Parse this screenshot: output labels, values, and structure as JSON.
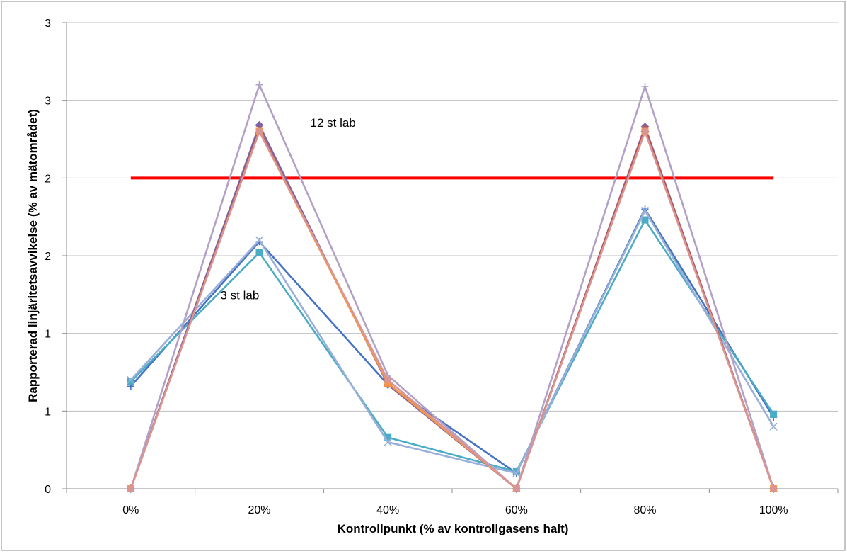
{
  "chart_data": {
    "type": "line",
    "title": "",
    "xlabel": "Kontrollpunkt (% av kontrollgasens halt)",
    "ylabel": "Rapporterad linjäritetsavvikelse (% av mätområdet)",
    "categories": [
      "0%",
      "20%",
      "40%",
      "60%",
      "80%",
      "100%"
    ],
    "yticks": [
      0,
      0.5,
      1,
      1.5,
      2,
      2.5,
      3
    ],
    "ytick_labels": [
      "0",
      "1",
      "1",
      "2",
      "2",
      "3",
      "3"
    ],
    "ylim": [
      0,
      3
    ],
    "grid": "horizontal",
    "legend": "none",
    "reference_line": {
      "y": 2.0,
      "x_from": 0,
      "x_to": 5,
      "color": "#ff0000"
    },
    "annotations": [
      {
        "text": "12 st lab",
        "category": "20%",
        "y": 2.33
      },
      {
        "text": "3 st lab",
        "category": "20%",
        "y": 1.22
      }
    ],
    "series": [
      {
        "color": "#4472c4",
        "marker": "plus",
        "values": [
          0.66,
          1.59,
          0.67,
          0.1,
          1.8,
          0.46
        ]
      },
      {
        "color": "#4bacc6",
        "marker": "square",
        "values": [
          0.69,
          1.52,
          0.33,
          0.11,
          1.73,
          0.48
        ]
      },
      {
        "color": "#9ab0d8",
        "marker": "x",
        "values": [
          0.7,
          1.6,
          0.3,
          0.1,
          1.79,
          0.4
        ]
      },
      {
        "color": "#8064a2",
        "marker": "diamond",
        "values": [
          0,
          2.34,
          0.67,
          0,
          2.33,
          0
        ]
      },
      {
        "color": "#c0504d",
        "marker": "triangle",
        "values": [
          0,
          2.31,
          0.68,
          0,
          2.32,
          0
        ]
      },
      {
        "color": "#f79646",
        "marker": "square",
        "values": [
          0,
          2.3,
          0.68,
          0,
          2.3,
          0
        ]
      },
      {
        "color": "#b2a1c7",
        "marker": "plus",
        "values": [
          0,
          2.6,
          0.73,
          0,
          2.59,
          0
        ]
      },
      {
        "color": "#d99594",
        "marker": "circle",
        "values": [
          0,
          2.3,
          0.7,
          0,
          2.3,
          0
        ]
      }
    ]
  }
}
